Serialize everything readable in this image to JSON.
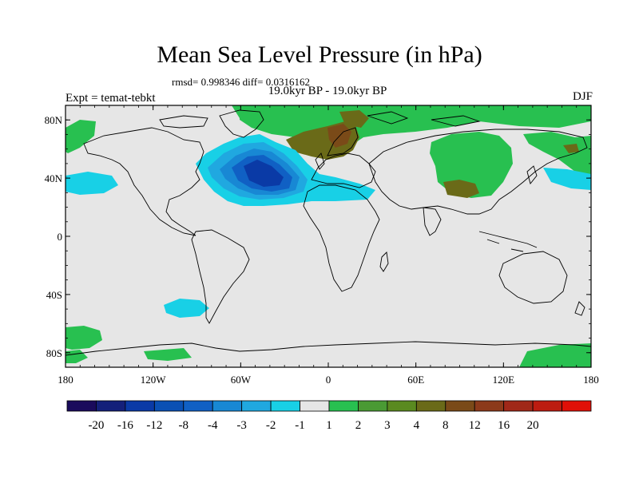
{
  "title": "Mean Sea Level Pressure (in hPa)",
  "stats": "rmsd= 0.998346 diff= 0.0316162",
  "subtitle": "19.0kyr BP - 19.0kyr BP",
  "expt": "Expt = temat-tebkt",
  "season": "DJF",
  "map": {
    "lon_range": [
      -180,
      180
    ],
    "lat_range": [
      -90,
      90
    ],
    "x_ticks": [
      {
        "lon": -180,
        "label": "180"
      },
      {
        "lon": -120,
        "label": "120W"
      },
      {
        "lon": -60,
        "label": "60W"
      },
      {
        "lon": 0,
        "label": "0"
      },
      {
        "lon": 60,
        "label": "60E"
      },
      {
        "lon": 120,
        "label": "120E"
      },
      {
        "lon": 180,
        "label": "180"
      }
    ],
    "y_ticks": [
      {
        "lat": 80,
        "label": "80N"
      },
      {
        "lat": 40,
        "label": "40N"
      },
      {
        "lat": 0,
        "label": "0"
      },
      {
        "lat": -40,
        "label": "40S"
      },
      {
        "lat": -80,
        "label": "80S"
      }
    ]
  },
  "colorbar": {
    "colors": [
      "#1a0b5c",
      "#14207a",
      "#0a3aa6",
      "#0a50b4",
      "#1060c4",
      "#1888d4",
      "#20a8e0",
      "#18d0e6",
      "#e6e6e6",
      "#28c050",
      "#4a9a34",
      "#5a8a20",
      "#6a6a18",
      "#7a4a18",
      "#8c3a1a",
      "#a02818",
      "#bc1c10",
      "#e01008"
    ],
    "labels": [
      "-20",
      "-16",
      "-12",
      "-8",
      "-4",
      "-3",
      "-2",
      "-1",
      "1",
      "2",
      "3",
      "4",
      "8",
      "12",
      "16",
      "20"
    ]
  }
}
